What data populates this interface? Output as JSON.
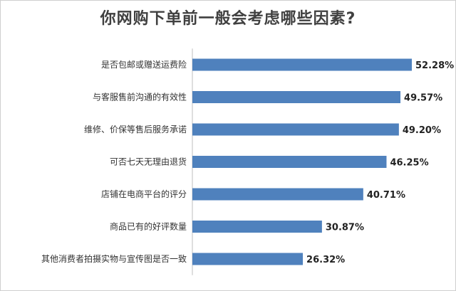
{
  "chart_data": {
    "type": "bar",
    "orientation": "horizontal",
    "title": "你网购下单前一般会考虑哪些因素?",
    "categories": [
      "是否包邮或赠送运费险",
      "与客服售前沟通的有效性",
      "维修、价保等售后服务承诺",
      "可否七天无理由退货",
      "店铺在电商平台的评分",
      "商品已有的好评数量",
      "其他消费者拍摄实物与宣传图是否一致"
    ],
    "values": [
      52.28,
      49.57,
      49.2,
      46.25,
      40.71,
      30.87,
      26.32
    ],
    "value_labels": [
      "52.28%",
      "49.57%",
      "49.20%",
      "46.25%",
      "40.71%",
      "30.87%",
      "26.32%"
    ],
    "unit": "%",
    "bar_color": "#4f81bd",
    "xlim": [
      0,
      60
    ],
    "grid": false,
    "legend": "none"
  }
}
